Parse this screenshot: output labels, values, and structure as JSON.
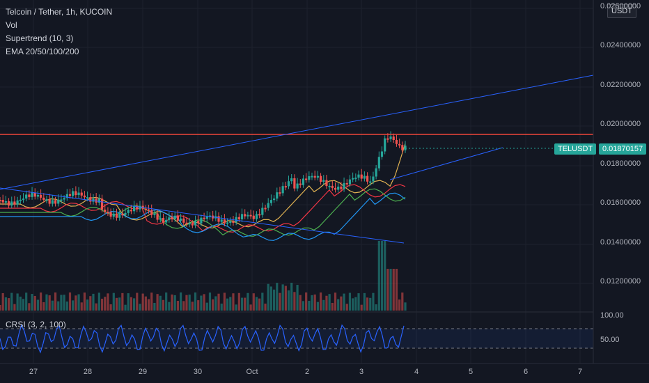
{
  "header": {
    "symbol": "Telcoin / Tether, 1h, KUCOIN",
    "indicators": [
      "Vol",
      "Supertrend (10, 3)",
      "EMA 20/50/100/200"
    ]
  },
  "currency_button": "USDT",
  "price_axis": [
    "0.02600000",
    "0.02400000",
    "0.02200000",
    "0.02000000",
    "0.01800000",
    "0.01600000",
    "0.01400000",
    "0.01200000"
  ],
  "symbol_tag": {
    "label": "TELUSDT",
    "price": "0.01870157"
  },
  "sub_panel": {
    "label": "CRSI (3, 2, 100)",
    "ticks": [
      "100.00",
      "50.00"
    ]
  },
  "time_axis": [
    "27",
    "28",
    "29",
    "30",
    "Oct",
    "2",
    "3",
    "4",
    "5",
    "6",
    "7"
  ],
  "colors": {
    "background": "#131722",
    "up": "#26a69a",
    "down": "#ef5350",
    "resistance": "#f0473a",
    "trendline": "#2962ff",
    "crsi": "#2962ff",
    "tag_bg": "#26a69a"
  }
}
